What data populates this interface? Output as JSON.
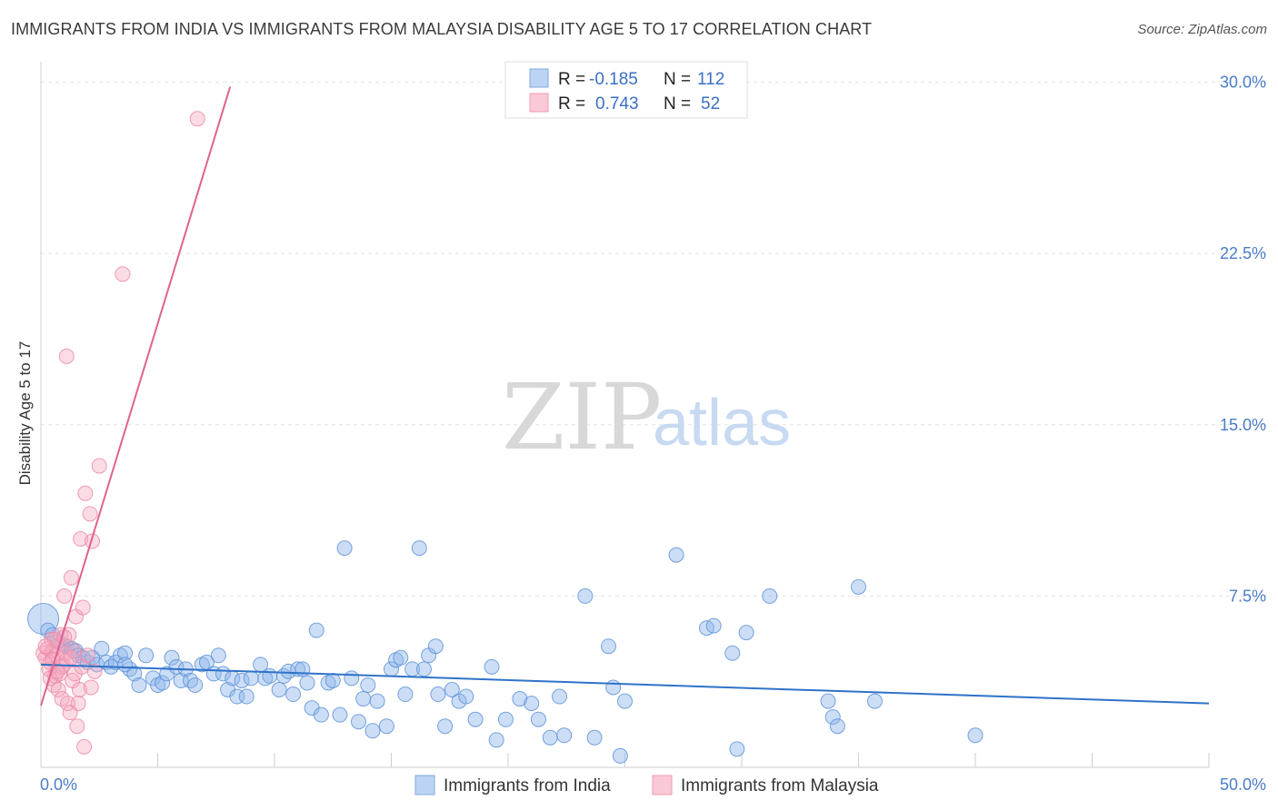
{
  "title": "IMMIGRANTS FROM INDIA VS IMMIGRANTS FROM MALAYSIA DISABILITY AGE 5 TO 17 CORRELATION CHART",
  "source": "Source: ZipAtlas.com",
  "watermark": {
    "zip": "ZIP",
    "atlas": "atlas"
  },
  "colors": {
    "india": "#8fb6ea",
    "india_line": "#2f72c9",
    "malaysia": "#f4a7bd",
    "malaysia_line": "#e0628f",
    "axis_text": "#4a7cc6"
  },
  "legend": {
    "rows": [
      {
        "r_label": "R =",
        "r_value": "-0.185",
        "n_label": "N =",
        "n_value": "112"
      },
      {
        "r_label": "R =",
        "r_value": "0.743",
        "n_label": "N =",
        "n_value": "52"
      }
    ]
  },
  "chart_data": {
    "type": "scatter",
    "title": "IMMIGRANTS FROM INDIA VS IMMIGRANTS FROM MALAYSIA DISABILITY AGE 5 TO 17 CORRELATION CHART",
    "xlabel": "",
    "ylabel": "Disability Age 5 to 17",
    "xlim": [
      0,
      50
    ],
    "ylim": [
      0,
      30.5
    ],
    "x_tick_labels": [
      "0.0%",
      "50.0%"
    ],
    "y_ticks": [
      7.5,
      15.0,
      22.5,
      30.0
    ],
    "y_tick_labels": [
      "7.5%",
      "15.0%",
      "22.5%",
      "30.0%"
    ],
    "series": [
      {
        "name": "Immigrants from India",
        "r": -0.185,
        "n": 112,
        "trend": {
          "x": [
            0,
            50
          ],
          "y": [
            4.5,
            2.8
          ]
        },
        "points": [
          [
            0.1,
            6.5
          ],
          [
            0.3,
            6.0
          ],
          [
            0.5,
            5.8
          ],
          [
            0.7,
            5.5
          ],
          [
            0.9,
            5.4
          ],
          [
            1.1,
            5.3
          ],
          [
            1.3,
            5.2
          ],
          [
            1.5,
            5.1
          ],
          [
            1.6,
            4.9
          ],
          [
            1.8,
            4.8
          ],
          [
            2.0,
            4.6
          ],
          [
            2.2,
            4.8
          ],
          [
            2.4,
            4.5
          ],
          [
            2.6,
            5.2
          ],
          [
            2.8,
            4.6
          ],
          [
            3.0,
            4.4
          ],
          [
            3.2,
            4.6
          ],
          [
            3.4,
            4.9
          ],
          [
            3.6,
            5.0
          ],
          [
            3.8,
            4.3
          ],
          [
            4.0,
            4.1
          ],
          [
            4.2,
            3.6
          ],
          [
            4.5,
            4.9
          ],
          [
            4.8,
            3.9
          ],
          [
            5.0,
            3.6
          ],
          [
            5.2,
            3.7
          ],
          [
            5.4,
            4.1
          ],
          [
            5.6,
            4.8
          ],
          [
            5.8,
            4.4
          ],
          [
            6.0,
            3.8
          ],
          [
            6.2,
            4.3
          ],
          [
            6.4,
            3.8
          ],
          [
            6.6,
            3.6
          ],
          [
            6.9,
            4.5
          ],
          [
            7.1,
            4.6
          ],
          [
            7.4,
            4.1
          ],
          [
            7.6,
            4.9
          ],
          [
            7.8,
            4.1
          ],
          [
            8.0,
            3.4
          ],
          [
            8.2,
            3.9
          ],
          [
            8.4,
            3.1
          ],
          [
            8.6,
            3.8
          ],
          [
            8.8,
            3.1
          ],
          [
            9.0,
            3.9
          ],
          [
            9.4,
            4.5
          ],
          [
            9.6,
            3.9
          ],
          [
            9.8,
            4.0
          ],
          [
            10.2,
            3.4
          ],
          [
            10.4,
            4.0
          ],
          [
            10.6,
            4.2
          ],
          [
            10.8,
            3.2
          ],
          [
            11.0,
            4.3
          ],
          [
            11.2,
            4.3
          ],
          [
            11.4,
            3.7
          ],
          [
            11.6,
            2.6
          ],
          [
            11.8,
            6.0
          ],
          [
            12.0,
            2.3
          ],
          [
            12.3,
            3.7
          ],
          [
            12.5,
            3.8
          ],
          [
            12.8,
            2.3
          ],
          [
            13.0,
            9.6
          ],
          [
            13.3,
            3.9
          ],
          [
            13.6,
            2.0
          ],
          [
            13.8,
            3.0
          ],
          [
            14.0,
            3.6
          ],
          [
            14.2,
            1.6
          ],
          [
            14.4,
            2.9
          ],
          [
            14.8,
            1.8
          ],
          [
            15.0,
            4.3
          ],
          [
            15.2,
            4.7
          ],
          [
            15.4,
            4.8
          ],
          [
            15.6,
            3.2
          ],
          [
            15.9,
            4.3
          ],
          [
            16.2,
            9.6
          ],
          [
            16.4,
            4.3
          ],
          [
            16.6,
            4.9
          ],
          [
            16.9,
            5.3
          ],
          [
            17.0,
            3.2
          ],
          [
            17.3,
            1.8
          ],
          [
            17.6,
            3.4
          ],
          [
            17.9,
            2.9
          ],
          [
            18.2,
            3.1
          ],
          [
            18.6,
            2.1
          ],
          [
            19.3,
            4.4
          ],
          [
            19.5,
            1.2
          ],
          [
            19.9,
            2.1
          ],
          [
            20.5,
            3.0
          ],
          [
            21.0,
            2.8
          ],
          [
            21.3,
            2.1
          ],
          [
            21.8,
            1.3
          ],
          [
            22.2,
            3.1
          ],
          [
            22.4,
            1.4
          ],
          [
            23.3,
            7.5
          ],
          [
            23.7,
            1.3
          ],
          [
            24.3,
            5.3
          ],
          [
            24.5,
            3.5
          ],
          [
            24.8,
            0.5
          ],
          [
            25.0,
            2.9
          ],
          [
            27.2,
            9.3
          ],
          [
            28.5,
            6.1
          ],
          [
            28.8,
            6.2
          ],
          [
            29.6,
            5.0
          ],
          [
            29.8,
            0.8
          ],
          [
            30.2,
            5.9
          ],
          [
            31.2,
            7.5
          ],
          [
            33.7,
            2.9
          ],
          [
            33.9,
            2.2
          ],
          [
            34.1,
            1.8
          ],
          [
            35.0,
            7.9
          ],
          [
            35.7,
            2.9
          ],
          [
            40.0,
            1.4
          ],
          [
            3.6,
            4.5
          ]
        ]
      },
      {
        "name": "Immigrants from Malaysia",
        "r": 0.743,
        "n": 52,
        "trend": {
          "x": [
            0,
            8.1
          ],
          "y": [
            2.7,
            29.8
          ]
        },
        "points": [
          [
            0.1,
            5.0
          ],
          [
            0.2,
            4.8
          ],
          [
            0.3,
            5.2
          ],
          [
            0.35,
            4.3
          ],
          [
            0.4,
            4.6
          ],
          [
            0.45,
            5.6
          ],
          [
            0.5,
            5.1
          ],
          [
            0.55,
            3.6
          ],
          [
            0.6,
            4.0
          ],
          [
            0.65,
            4.9
          ],
          [
            0.7,
            5.3
          ],
          [
            0.75,
            3.4
          ],
          [
            0.8,
            4.1
          ],
          [
            0.85,
            5.8
          ],
          [
            0.9,
            3.0
          ],
          [
            0.95,
            4.5
          ],
          [
            1.0,
            7.5
          ],
          [
            1.05,
            5.0
          ],
          [
            1.1,
            4.7
          ],
          [
            1.15,
            2.8
          ],
          [
            1.2,
            5.8
          ],
          [
            1.25,
            2.4
          ],
          [
            1.3,
            8.3
          ],
          [
            1.35,
            3.8
          ],
          [
            1.4,
            5.1
          ],
          [
            1.45,
            4.1
          ],
          [
            1.5,
            6.6
          ],
          [
            1.55,
            1.8
          ],
          [
            1.6,
            2.8
          ],
          [
            1.65,
            3.4
          ],
          [
            1.7,
            10.0
          ],
          [
            1.75,
            4.4
          ],
          [
            1.8,
            7.0
          ],
          [
            1.85,
            0.9
          ],
          [
            1.9,
            12.0
          ],
          [
            2.0,
            4.9
          ],
          [
            2.1,
            11.1
          ],
          [
            2.15,
            3.5
          ],
          [
            2.2,
            9.9
          ],
          [
            2.3,
            4.2
          ],
          [
            2.5,
            13.2
          ],
          [
            3.5,
            21.6
          ],
          [
            6.7,
            28.4
          ],
          [
            1.1,
            18.0
          ],
          [
            0.6,
            5.6
          ],
          [
            0.4,
            3.9
          ],
          [
            0.9,
            4.4
          ],
          [
            1.3,
            4.8
          ],
          [
            0.2,
            5.3
          ],
          [
            0.7,
            4.2
          ],
          [
            1.0,
            5.7
          ],
          [
            0.5,
            4.7
          ]
        ]
      }
    ]
  },
  "bottom_legend": {
    "india_label": "Immigrants from India",
    "malaysia_label": "Immigrants from Malaysia"
  }
}
